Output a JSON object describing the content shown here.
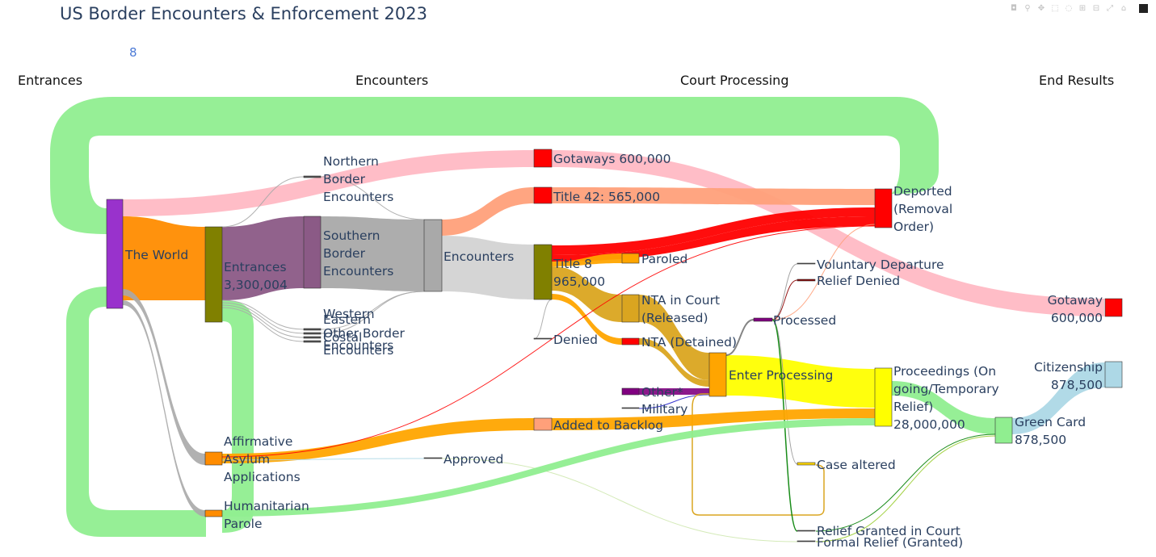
{
  "title": "US Border Encounters & Enforcement 2023",
  "slider_value": "8",
  "columns": [
    "Entrances",
    "Encounters",
    "Court Processing",
    "End Results"
  ],
  "modebar": [
    "camera-icon",
    "zoom-icon",
    "pan-icon",
    "box-select-icon",
    "lasso-icon",
    "zoom-in-icon",
    "zoom-out-icon",
    "autoscale-icon",
    "reset-icon",
    "plotly-logo"
  ],
  "nodes": {
    "world": {
      "label": [
        "The World"
      ],
      "color": "#9932cc"
    },
    "entrances": {
      "label": [
        "Entrances",
        "3,300,004"
      ],
      "color": "#808000"
    },
    "northern": {
      "label": [
        "Northern",
        "Border",
        "Encounters"
      ],
      "color": "#555555"
    },
    "southern": {
      "label": [
        "Southern",
        "Border",
        "Encounters"
      ],
      "color": "#8b5a86"
    },
    "western": {
      "label": [
        "Western"
      ],
      "color": "#555555"
    },
    "eastern": {
      "label": [
        "Eastern"
      ],
      "color": "#555555"
    },
    "other_border": {
      "label": [
        "Other Border"
      ],
      "color": "#555555"
    },
    "coastal": {
      "label": [
        "Costal"
      ],
      "color": "#555555"
    },
    "encounters_extra": {
      "label": [
        "Encounters",
        "Encounters"
      ],
      "color": "#555555"
    },
    "encounters": {
      "label": [
        "Encounters"
      ],
      "color": "#a9a9a9"
    },
    "gotaways": {
      "label": [
        "Gotaways 600,000"
      ],
      "color": "#ff0000"
    },
    "title42": {
      "label": [
        "Title 42: 565,000"
      ],
      "color": "#ff0000"
    },
    "title8": {
      "label": [
        "Title 8",
        "965,000"
      ],
      "color": "#808000"
    },
    "paroled": {
      "label": [
        "Paroled"
      ],
      "color": "#ffa500"
    },
    "nta_released": {
      "label": [
        "NTA in Court",
        "(Released)"
      ],
      "color": "#daa520"
    },
    "nta_detained": {
      "label": [
        "NTA (Detained)"
      ],
      "color": "#ff0000"
    },
    "denied": {
      "label": [
        "Denied"
      ],
      "color": "#555555"
    },
    "other": {
      "label": [
        "Other*"
      ],
      "color": "#800080"
    },
    "military": {
      "label": [
        "Military"
      ],
      "color": "#555555"
    },
    "added_backlog": {
      "label": [
        "Added to Backlog"
      ],
      "color": "#ffa07a"
    },
    "affirmative": {
      "label": [
        "Affirmative",
        "Asylum",
        "Applications"
      ],
      "color": "#ff8c00"
    },
    "humanitarian": {
      "label": [
        "Humanitarian",
        "Parole"
      ],
      "color": "#ff8c00"
    },
    "approved": {
      "label": [
        "Approved"
      ],
      "color": "#555555"
    },
    "enter_processing": {
      "label": [
        "Enter Processing"
      ],
      "color": "#ffa500"
    },
    "processed": {
      "label": [
        "Processed"
      ],
      "color": "#800080"
    },
    "deported": {
      "label": [
        "Deported",
        "(Removal",
        "Order)"
      ],
      "color": "#ff0000"
    },
    "voluntary": {
      "label": [
        "Voluntary Departure"
      ],
      "color": "#555555"
    },
    "relief_denied": {
      "label": [
        "Relief Denied"
      ],
      "color": "#8b0000"
    },
    "proceedings": {
      "label": [
        "Proceedings (On",
        "going/Temporary",
        "Relief)",
        "28,000,000"
      ],
      "color": "#ffff00"
    },
    "case_altered": {
      "label": [
        "Case altered"
      ],
      "color": "#ffd700"
    },
    "relief_granted": {
      "label": [
        "Relief Granted in Court"
      ],
      "color": "#555555"
    },
    "formal_relief": {
      "label": [
        "Formal Relief (Granted)"
      ],
      "color": "#555555"
    },
    "gotaway_end": {
      "label": [
        "Gotaway",
        "600,000"
      ],
      "color": "#ff0000"
    },
    "citizenship": {
      "label": [
        "Citizenship",
        "878,500"
      ],
      "color": "#add8e6"
    },
    "green_card": {
      "label": [
        "Green Card",
        "878,500"
      ],
      "color": "#90ee90"
    }
  },
  "link_colors": {
    "green": "#90ee90",
    "pink": "#ffb6c1",
    "salmon": "#ffa07a",
    "orange": "#ff8c00",
    "purple": "#8b5a86",
    "gray": "#a9a9a9",
    "lightgray": "#d3d3d3",
    "red": "#ff0000",
    "gold": "#daa520",
    "yellow": "#ffff00",
    "amber": "#ffa500",
    "lightblue": "#add8e6"
  }
}
